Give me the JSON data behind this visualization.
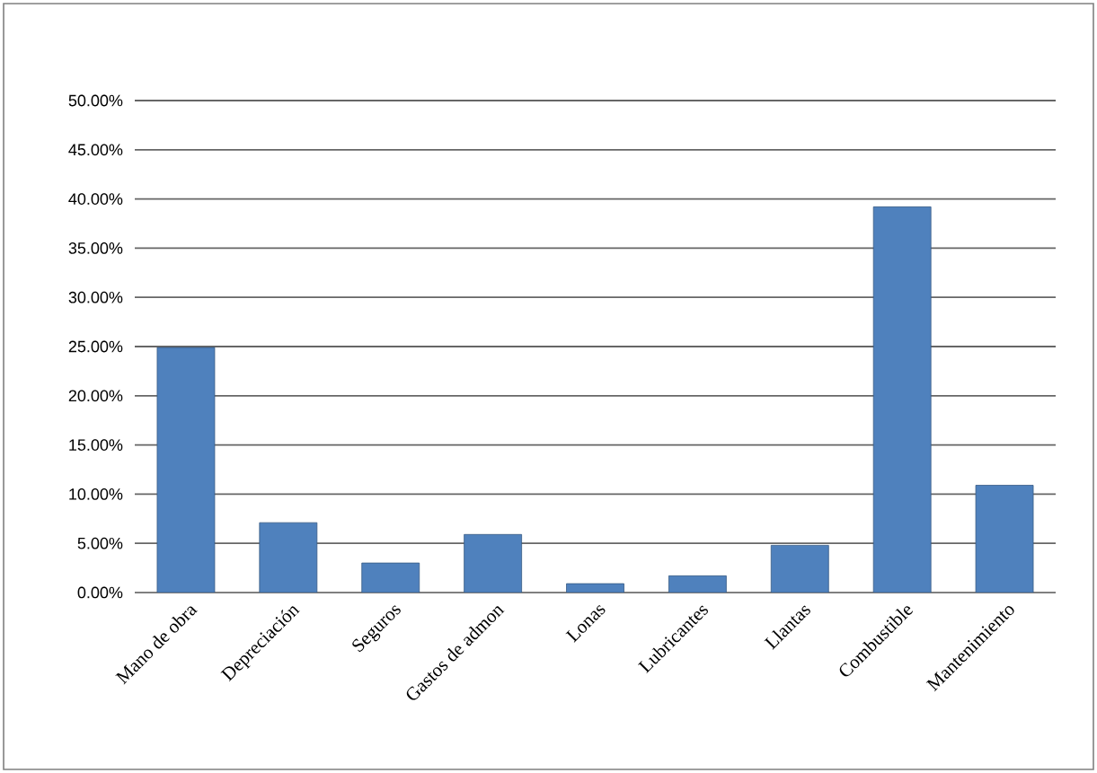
{
  "chart_data": {
    "type": "bar",
    "categories": [
      "Mano de obra",
      "Depreciación",
      "Seguros",
      "Gastos de admon",
      "Lonas",
      "Lubricantes",
      "Llantas",
      "Combustible",
      "Mantenimiento"
    ],
    "values": [
      24.9,
      7.1,
      3.0,
      5.9,
      0.9,
      1.7,
      4.8,
      39.2,
      10.9
    ],
    "color": "#4f81bd",
    "ylim": [
      0,
      50
    ],
    "yticks": [
      {
        "value": 0,
        "label": "0.00%"
      },
      {
        "value": 5,
        "label": "5.00%"
      },
      {
        "value": 10,
        "label": "10.00%"
      },
      {
        "value": 15,
        "label": "15.00%"
      },
      {
        "value": 20,
        "label": "20.00%"
      },
      {
        "value": 25,
        "label": "25.00%"
      },
      {
        "value": 30,
        "label": "30.00%"
      },
      {
        "value": 35,
        "label": "35.00%"
      },
      {
        "value": 40,
        "label": "40.00%"
      },
      {
        "value": 45,
        "label": "45.00%"
      },
      {
        "value": 50,
        "label": "50.00%"
      }
    ],
    "grid": "y"
  }
}
